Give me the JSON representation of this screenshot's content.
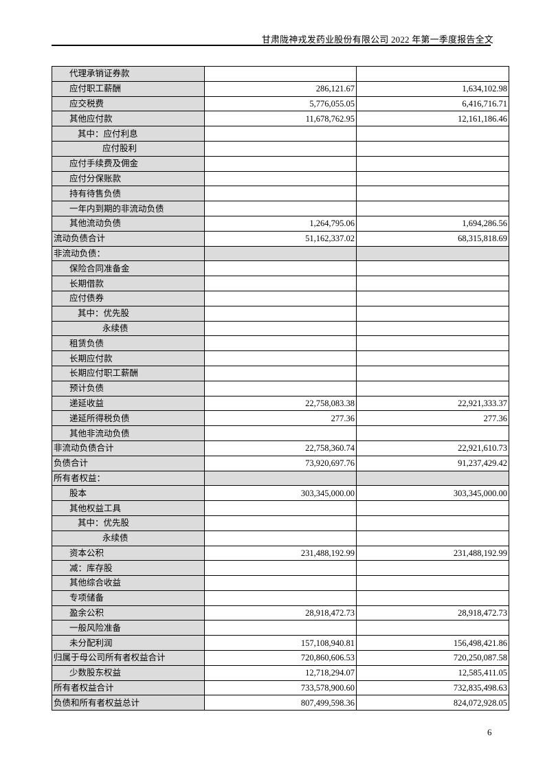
{
  "header": {
    "title": "甘肃陇神戎发药业股份有限公司 2022 年第一季度报告全文"
  },
  "page_number": "6",
  "table": {
    "rows": [
      {
        "label": "代理承销证券款",
        "level": 1,
        "v1": "",
        "v2": ""
      },
      {
        "label": "应付职工薪酬",
        "level": 1,
        "v1": "286,121.67",
        "v2": "1,634,102.98"
      },
      {
        "label": "应交税费",
        "level": 1,
        "v1": "5,776,055.05",
        "v2": "6,416,716.71"
      },
      {
        "label": "其他应付款",
        "level": 1,
        "v1": "11,678,762.95",
        "v2": "12,161,186.46"
      },
      {
        "label": "其中：应付利息",
        "level": 2,
        "v1": "",
        "v2": ""
      },
      {
        "label": "应付股利",
        "level": 3,
        "v1": "",
        "v2": ""
      },
      {
        "label": "应付手续费及佣金",
        "level": 1,
        "v1": "",
        "v2": ""
      },
      {
        "label": "应付分保账款",
        "level": 1,
        "v1": "",
        "v2": ""
      },
      {
        "label": "持有待售负债",
        "level": 1,
        "v1": "",
        "v2": ""
      },
      {
        "label": "一年内到期的非流动负债",
        "level": 1,
        "v1": "",
        "v2": ""
      },
      {
        "label": "其他流动负债",
        "level": 1,
        "v1": "1,264,795.06",
        "v2": "1,694,286.56"
      },
      {
        "label": "流动负债合计",
        "level": 0,
        "v1": "51,162,337.02",
        "v2": "68,315,818.69"
      },
      {
        "label": "非流动负债：",
        "level": 0,
        "section": true,
        "v1": "",
        "v2": ""
      },
      {
        "label": "保险合同准备金",
        "level": 1,
        "v1": "",
        "v2": ""
      },
      {
        "label": "长期借款",
        "level": 1,
        "v1": "",
        "v2": ""
      },
      {
        "label": "应付债券",
        "level": 1,
        "v1": "",
        "v2": ""
      },
      {
        "label": "其中：优先股",
        "level": 2,
        "v1": "",
        "v2": ""
      },
      {
        "label": "永续债",
        "level": 3,
        "v1": "",
        "v2": ""
      },
      {
        "label": "租赁负债",
        "level": 1,
        "v1": "",
        "v2": ""
      },
      {
        "label": "长期应付款",
        "level": 1,
        "v1": "",
        "v2": ""
      },
      {
        "label": "长期应付职工薪酬",
        "level": 1,
        "v1": "",
        "v2": ""
      },
      {
        "label": "预计负债",
        "level": 1,
        "v1": "",
        "v2": ""
      },
      {
        "label": "递延收益",
        "level": 1,
        "v1": "22,758,083.38",
        "v2": "22,921,333.37"
      },
      {
        "label": "递延所得税负债",
        "level": 1,
        "v1": "277.36",
        "v2": "277.36"
      },
      {
        "label": "其他非流动负债",
        "level": 1,
        "v1": "",
        "v2": ""
      },
      {
        "label": "非流动负债合计",
        "level": 0,
        "v1": "22,758,360.74",
        "v2": "22,921,610.73"
      },
      {
        "label": "负债合计",
        "level": 0,
        "v1": "73,920,697.76",
        "v2": "91,237,429.42"
      },
      {
        "label": "所有者权益：",
        "level": 0,
        "section": true,
        "v1": "",
        "v2": ""
      },
      {
        "label": "股本",
        "level": 1,
        "v1": "303,345,000.00",
        "v2": "303,345,000.00"
      },
      {
        "label": "其他权益工具",
        "level": 1,
        "v1": "",
        "v2": ""
      },
      {
        "label": "其中：优先股",
        "level": 2,
        "v1": "",
        "v2": ""
      },
      {
        "label": "永续债",
        "level": 3,
        "v1": "",
        "v2": ""
      },
      {
        "label": "资本公积",
        "level": 1,
        "v1": "231,488,192.99",
        "v2": "231,488,192.99"
      },
      {
        "label": "减：库存股",
        "level": 1,
        "v1": "",
        "v2": ""
      },
      {
        "label": "其他综合收益",
        "level": 1,
        "v1": "",
        "v2": ""
      },
      {
        "label": "专项储备",
        "level": 1,
        "v1": "",
        "v2": ""
      },
      {
        "label": "盈余公积",
        "level": 1,
        "v1": "28,918,472.73",
        "v2": "28,918,472.73"
      },
      {
        "label": "一般风险准备",
        "level": 1,
        "v1": "",
        "v2": ""
      },
      {
        "label": "未分配利润",
        "level": 1,
        "v1": "157,108,940.81",
        "v2": "156,498,421.86"
      },
      {
        "label": "归属于母公司所有者权益合计",
        "level": 0,
        "v1": "720,860,606.53",
        "v2": "720,250,087.58"
      },
      {
        "label": "少数股东权益",
        "level": 1,
        "v1": "12,718,294.07",
        "v2": "12,585,411.05"
      },
      {
        "label": "所有者权益合计",
        "level": 0,
        "v1": "733,578,900.60",
        "v2": "732,835,498.63"
      },
      {
        "label": "负债和所有者权益总计",
        "level": 0,
        "v1": "807,499,598.36",
        "v2": "824,072,928.05"
      }
    ]
  }
}
